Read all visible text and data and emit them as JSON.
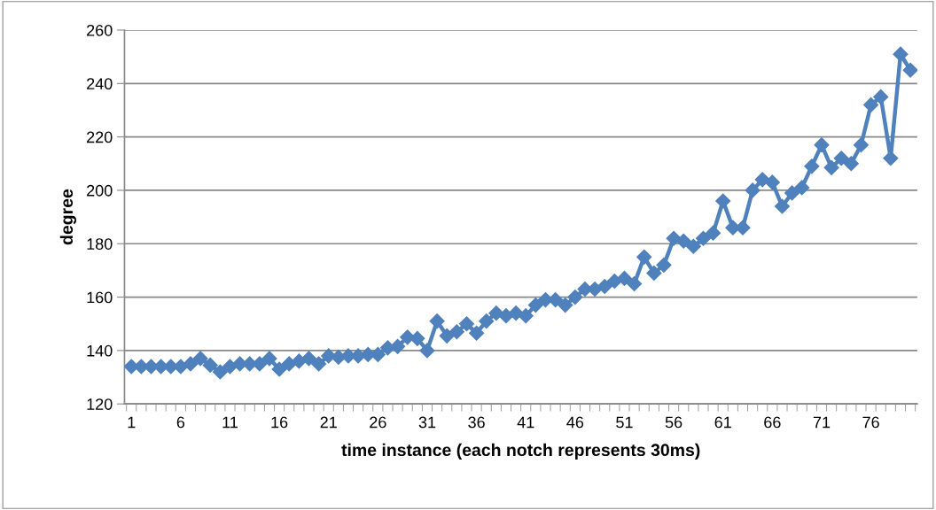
{
  "chart_data": {
    "type": "line",
    "xlabel": "time instance (each notch represents 30ms)",
    "ylabel": "degree",
    "categories": [
      "1",
      null,
      null,
      null,
      null,
      "6",
      null,
      null,
      null,
      null,
      "11",
      null,
      null,
      null,
      null,
      "16",
      null,
      null,
      null,
      null,
      "21",
      null,
      null,
      null,
      null,
      "26",
      null,
      null,
      null,
      null,
      "31",
      null,
      null,
      null,
      null,
      "36",
      null,
      null,
      null,
      null,
      "41",
      null,
      null,
      null,
      null,
      "46",
      null,
      null,
      null,
      null,
      "51",
      null,
      null,
      null,
      null,
      "56",
      null,
      null,
      null,
      null,
      "61",
      null,
      null,
      null,
      null,
      "66",
      null,
      null,
      null,
      null,
      "71",
      null,
      null,
      null,
      null,
      "76",
      null,
      null,
      null,
      null
    ],
    "series": [
      {
        "color": "#4f81bd",
        "values": [
          134,
          134,
          134,
          134,
          134,
          134,
          135,
          137,
          134.5,
          132,
          134,
          135,
          135,
          135,
          137,
          133,
          135,
          136,
          137,
          135,
          138,
          137.5,
          138,
          138,
          138.5,
          138.5,
          141,
          141.5,
          145,
          144.5,
          140,
          151,
          145.5,
          147,
          150,
          146.5,
          151,
          154,
          153,
          154,
          153,
          157,
          159,
          159,
          157,
          160,
          163,
          163,
          164,
          166,
          167,
          165,
          175,
          169,
          172,
          182,
          181,
          179,
          182,
          184,
          196,
          186,
          186,
          200,
          204,
          203,
          194,
          199,
          201,
          209,
          217,
          208.5,
          212,
          210,
          217,
          232,
          235,
          212,
          251,
          245
        ]
      }
    ],
    "ylim": [
      120,
      260
    ],
    "yticks": [
      120,
      140,
      160,
      180,
      200,
      220,
      240,
      260
    ],
    "grid": "y",
    "marker": "diamond",
    "line_style": "solid"
  }
}
